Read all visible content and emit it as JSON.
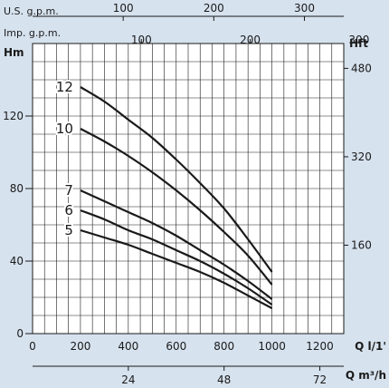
{
  "chart_data": {
    "type": "line",
    "title": "",
    "grid": true,
    "x_axis": {
      "label": "Q l/1'",
      "range": [
        0,
        1300
      ],
      "ticks": [
        0,
        200,
        400,
        600,
        800,
        1000,
        1200
      ],
      "minor_step": 50
    },
    "y_axis": {
      "label": "Hm",
      "range": [
        0,
        160
      ],
      "ticks": [
        0,
        40,
        80,
        120
      ],
      "minor_step": 10
    },
    "secondary_x_axis": {
      "label": "Q m³/h",
      "ticks": [
        24,
        48,
        72
      ]
    },
    "top_axis_us": {
      "label": "U.S. g.p.m.",
      "ticks": [
        100,
        200,
        300
      ]
    },
    "top_axis_imp": {
      "label": "Imp. g.p.m.",
      "ticks": [
        100,
        200,
        300
      ]
    },
    "right_axis": {
      "label": "Hft",
      "ticks": [
        160,
        320,
        480
      ]
    },
    "series": [
      {
        "name": "12",
        "x": [
          200,
          300,
          400,
          500,
          600,
          700,
          800,
          900,
          1000
        ],
        "y": [
          136,
          128,
          118,
          108,
          96,
          83,
          69,
          52,
          34
        ]
      },
      {
        "name": "10",
        "x": [
          200,
          300,
          400,
          500,
          600,
          700,
          800,
          900,
          1000
        ],
        "y": [
          113,
          106,
          98,
          89,
          79,
          68,
          56,
          43,
          27
        ]
      },
      {
        "name": "7",
        "x": [
          200,
          300,
          400,
          500,
          600,
          700,
          800,
          900,
          1000
        ],
        "y": [
          79,
          73,
          67,
          61,
          54,
          46,
          38,
          29,
          19
        ]
      },
      {
        "name": "6",
        "x": [
          200,
          300,
          400,
          500,
          600,
          700,
          800,
          900,
          1000
        ],
        "y": [
          68,
          63,
          57,
          52,
          46,
          40,
          33,
          25,
          16
        ]
      },
      {
        "name": "5",
        "x": [
          200,
          300,
          400,
          500,
          600,
          700,
          800,
          900,
          1000
        ],
        "y": [
          57,
          53,
          49,
          44,
          39,
          34,
          28,
          21,
          14
        ]
      }
    ]
  }
}
